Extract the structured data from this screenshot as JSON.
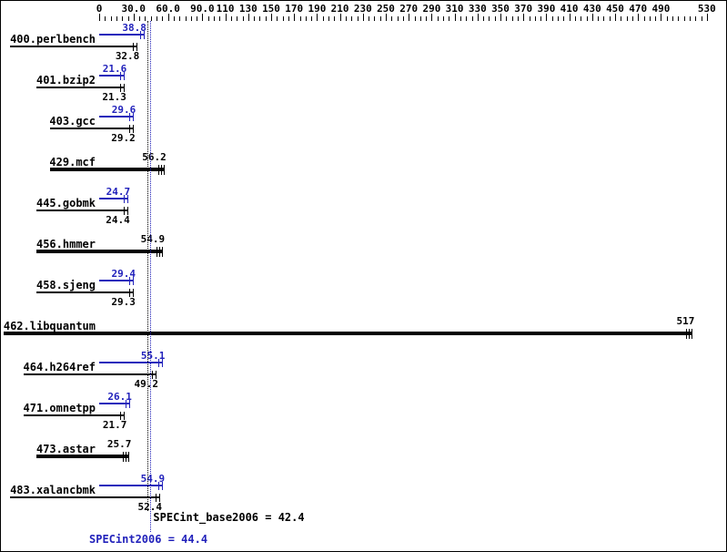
{
  "chart_data": {
    "type": "bar",
    "orientation": "horizontal",
    "xlim": [
      0,
      530
    ],
    "minor_tick_step": 5,
    "axis_ticks": [
      {
        "value": 0,
        "label": "0"
      },
      {
        "value": 30,
        "label": "30.0"
      },
      {
        "value": 60,
        "label": "60.0"
      },
      {
        "value": 90,
        "label": "90.0"
      },
      {
        "value": 110,
        "label": "110"
      },
      {
        "value": 130,
        "label": "130"
      },
      {
        "value": 150,
        "label": "150"
      },
      {
        "value": 170,
        "label": "170"
      },
      {
        "value": 190,
        "label": "190"
      },
      {
        "value": 210,
        "label": "210"
      },
      {
        "value": 230,
        "label": "230"
      },
      {
        "value": 250,
        "label": "250"
      },
      {
        "value": 270,
        "label": "270"
      },
      {
        "value": 290,
        "label": "290"
      },
      {
        "value": 310,
        "label": "310"
      },
      {
        "value": 330,
        "label": "330"
      },
      {
        "value": 350,
        "label": "350"
      },
      {
        "value": 370,
        "label": "370"
      },
      {
        "value": 390,
        "label": "390"
      },
      {
        "value": 410,
        "label": "410"
      },
      {
        "value": 430,
        "label": "430"
      },
      {
        "value": 450,
        "label": "450"
      },
      {
        "value": 470,
        "label": "470"
      },
      {
        "value": 490,
        "label": "490"
      },
      {
        "value": 530,
        "label": "530"
      }
    ],
    "benchmarks": [
      {
        "name": "400.perlbench",
        "basepeak": false,
        "peak": 38.8,
        "peak_label": "38.8",
        "base": 32.8,
        "base_label": "32.8"
      },
      {
        "name": "401.bzip2",
        "basepeak": false,
        "peak": 21.6,
        "peak_label": "21.6",
        "base": 21.3,
        "base_label": "21.3"
      },
      {
        "name": "403.gcc",
        "basepeak": false,
        "peak": 29.6,
        "peak_label": "29.6",
        "base": 29.2,
        "base_label": "29.2"
      },
      {
        "name": "429.mcf",
        "basepeak": true,
        "base": 56.2,
        "base_label": "56.2"
      },
      {
        "name": "445.gobmk",
        "basepeak": false,
        "peak": 24.7,
        "peak_label": "24.7",
        "base": 24.4,
        "base_label": "24.4"
      },
      {
        "name": "456.hmmer",
        "basepeak": true,
        "base": 54.9,
        "base_label": "54.9"
      },
      {
        "name": "458.sjeng",
        "basepeak": false,
        "peak": 29.4,
        "peak_label": "29.4",
        "base": 29.3,
        "base_label": "29.3"
      },
      {
        "name": "462.libquantum",
        "basepeak": true,
        "base": 517,
        "base_label": "517"
      },
      {
        "name": "464.h264ref",
        "basepeak": false,
        "peak": 55.1,
        "peak_label": "55.1",
        "base": 49.2,
        "base_label": "49.2"
      },
      {
        "name": "471.omnetpp",
        "basepeak": false,
        "peak": 26.1,
        "peak_label": "26.1",
        "base": 21.7,
        "base_label": "21.7"
      },
      {
        "name": "473.astar",
        "basepeak": true,
        "base": 25.7,
        "base_label": "25.7"
      },
      {
        "name": "483.xalancbmk",
        "basepeak": false,
        "peak": 54.9,
        "peak_label": "54.9",
        "base": 52.4,
        "base_label": "52.4"
      }
    ],
    "summary": {
      "base_value": 42.4,
      "base_text": "SPECint_base2006 = 42.4",
      "peak_value": 44.4,
      "peak_text": "SPECint2006 = 44.4"
    },
    "colors": {
      "peak": "#2222bb",
      "base": "#000000",
      "background": "#ffffff",
      "border": "#000000"
    }
  }
}
